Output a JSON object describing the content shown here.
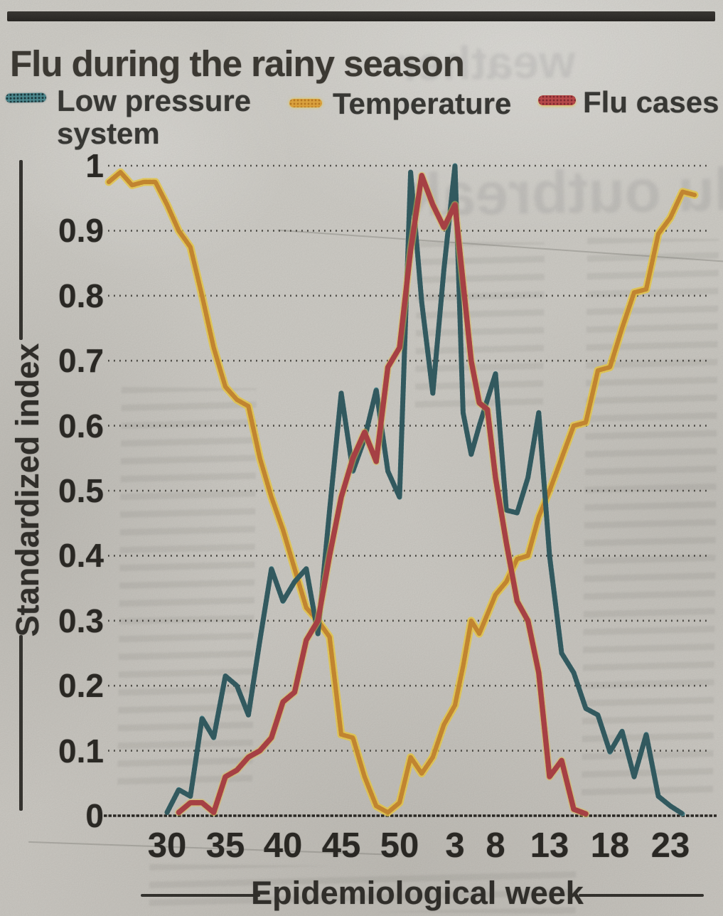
{
  "page": {
    "title": "Flu during the rainy season"
  },
  "legend": {
    "items": [
      {
        "id": "low-pressure",
        "lines": [
          "Low pressure",
          "system"
        ],
        "color": "#41808a"
      },
      {
        "id": "temperature",
        "lines": [
          "Temperature"
        ],
        "color": "#dd9c34"
      },
      {
        "id": "flu-cases",
        "lines": [
          "Flu cases"
        ],
        "color": "#bf4649"
      }
    ]
  },
  "ghost_text": {
    "headline_top": "weather",
    "headline_mid": "flu outbreak"
  },
  "chart_data": {
    "type": "line",
    "title": "Flu during the rainy season",
    "xlabel": "Epidemiological week",
    "ylabel": "Standardized index",
    "ylim": [
      0,
      1
    ],
    "grid": "dotted horizontal lines at every 0.1",
    "legend_position": "top",
    "x_axis_note": "weeks 30-52 of first year followed by weeks 1-26 of next year; continuous week index = week, or week+52 for the second year",
    "x_ticks": [
      {
        "label": "30",
        "week": 30
      },
      {
        "label": "35",
        "week": 35
      },
      {
        "label": "40",
        "week": 40
      },
      {
        "label": "45",
        "week": 45
      },
      {
        "label": "50",
        "week": 50
      },
      {
        "label": "3",
        "week": 55
      },
      {
        "label": "8",
        "week": 60
      },
      {
        "label": "13",
        "week": 65
      },
      {
        "label": "18",
        "week": 70
      },
      {
        "label": "23",
        "week": 75
      }
    ],
    "y_ticks": [
      {
        "label": "1",
        "value": 1.0
      },
      {
        "label": "0.9",
        "value": 0.9
      },
      {
        "label": "0.8",
        "value": 0.8
      },
      {
        "label": "0.7",
        "value": 0.7
      },
      {
        "label": "0.6",
        "value": 0.6
      },
      {
        "label": "0.5",
        "value": 0.5
      },
      {
        "label": "0.4",
        "value": 0.4
      },
      {
        "label": "0.3",
        "value": 0.3
      },
      {
        "label": "0.2",
        "value": 0.2
      },
      {
        "label": "0.1",
        "value": 0.1
      },
      {
        "label": "0",
        "value": 0.0
      }
    ],
    "series": [
      {
        "name": "Low pressure system",
        "color": "#41808a",
        "points": [
          [
            30,
            0.005
          ],
          [
            31,
            0.04
          ],
          [
            32,
            0.03
          ],
          [
            33,
            0.15
          ],
          [
            34,
            0.12
          ],
          [
            35,
            0.215
          ],
          [
            36,
            0.2
          ],
          [
            37,
            0.155
          ],
          [
            38,
            0.27
          ],
          [
            39,
            0.38
          ],
          [
            40,
            0.33
          ],
          [
            41,
            0.36
          ],
          [
            42,
            0.38
          ],
          [
            43,
            0.28
          ],
          [
            44,
            0.47
          ],
          [
            45,
            0.65
          ],
          [
            46,
            0.53
          ],
          [
            47,
            0.58
          ],
          [
            48,
            0.655
          ],
          [
            49,
            0.53
          ],
          [
            50,
            0.49
          ],
          [
            51,
            0.99
          ],
          [
            52,
            0.79
          ],
          [
            53,
            0.65
          ],
          [
            54,
            0.84
          ],
          [
            55,
            1.0
          ],
          [
            56,
            0.62
          ],
          [
            57,
            0.556
          ],
          [
            58,
            0.6
          ],
          [
            59,
            0.64
          ],
          [
            60,
            0.68
          ],
          [
            61,
            0.47
          ],
          [
            62,
            0.466
          ],
          [
            63,
            0.52
          ],
          [
            64,
            0.62
          ],
          [
            65,
            0.4
          ],
          [
            66,
            0.25
          ],
          [
            67,
            0.22
          ],
          [
            68,
            0.165
          ],
          [
            69,
            0.155
          ],
          [
            70,
            0.098
          ],
          [
            71,
            0.13
          ],
          [
            72,
            0.06
          ],
          [
            73,
            0.125
          ],
          [
            74,
            0.03
          ],
          [
            75,
            0.015
          ],
          [
            76,
            0.003
          ]
        ]
      },
      {
        "name": "Temperature",
        "color": "#dd9c34",
        "points": [
          [
            25,
            0.975
          ],
          [
            26,
            0.99
          ],
          [
            27,
            0.97
          ],
          [
            28,
            0.975
          ],
          [
            29,
            0.975
          ],
          [
            30,
            0.94
          ],
          [
            31,
            0.9
          ],
          [
            32,
            0.875
          ],
          [
            33,
            0.8
          ],
          [
            34,
            0.72
          ],
          [
            35,
            0.66
          ],
          [
            36,
            0.64
          ],
          [
            37,
            0.63
          ],
          [
            38,
            0.55
          ],
          [
            39,
            0.49
          ],
          [
            40,
            0.44
          ],
          [
            41,
            0.38
          ],
          [
            42,
            0.32
          ],
          [
            43,
            0.3
          ],
          [
            44,
            0.275
          ],
          [
            45,
            0.125
          ],
          [
            46,
            0.12
          ],
          [
            47,
            0.06
          ],
          [
            48,
            0.015
          ],
          [
            49,
            0.005
          ],
          [
            50,
            0.02
          ],
          [
            51,
            0.09
          ],
          [
            52,
            0.065
          ],
          [
            53,
            0.09
          ],
          [
            54,
            0.14
          ],
          [
            55,
            0.17
          ],
          [
            56,
            0.23
          ],
          [
            57,
            0.3
          ],
          [
            58,
            0.28
          ],
          [
            59,
            0.31
          ],
          [
            60,
            0.34
          ],
          [
            61,
            0.36
          ],
          [
            62,
            0.395
          ],
          [
            63,
            0.4
          ],
          [
            64,
            0.46
          ],
          [
            65,
            0.5
          ],
          [
            66,
            0.55
          ],
          [
            67,
            0.6
          ],
          [
            68,
            0.605
          ],
          [
            69,
            0.685
          ],
          [
            70,
            0.69
          ],
          [
            71,
            0.75
          ],
          [
            72,
            0.805
          ],
          [
            73,
            0.81
          ],
          [
            74,
            0.895
          ],
          [
            75,
            0.92
          ],
          [
            76,
            0.96
          ],
          [
            77,
            0.955
          ]
        ]
      },
      {
        "name": "Flu cases",
        "color": "#bf4649",
        "points": [
          [
            31,
            0.005
          ],
          [
            32,
            0.02
          ],
          [
            33,
            0.02
          ],
          [
            34,
            0.005
          ],
          [
            35,
            0.06
          ],
          [
            36,
            0.07
          ],
          [
            37,
            0.09
          ],
          [
            38,
            0.1
          ],
          [
            39,
            0.12
          ],
          [
            40,
            0.175
          ],
          [
            41,
            0.19
          ],
          [
            42,
            0.27
          ],
          [
            43,
            0.3
          ],
          [
            44,
            0.4
          ],
          [
            45,
            0.49
          ],
          [
            46,
            0.55
          ],
          [
            47,
            0.59
          ],
          [
            48,
            0.545
          ],
          [
            49,
            0.69
          ],
          [
            50,
            0.72
          ],
          [
            51,
            0.87
          ],
          [
            52,
            0.985
          ],
          [
            53,
            0.94
          ],
          [
            54,
            0.905
          ],
          [
            55,
            0.94
          ],
          [
            56,
            0.82
          ],
          [
            57,
            0.7
          ],
          [
            58,
            0.635
          ],
          [
            59,
            0.625
          ],
          [
            60,
            0.52
          ],
          [
            61,
            0.42
          ],
          [
            62,
            0.33
          ],
          [
            63,
            0.3
          ],
          [
            64,
            0.22
          ],
          [
            65,
            0.06
          ],
          [
            66,
            0.085
          ],
          [
            67,
            0.01
          ],
          [
            68,
            0.003
          ]
        ]
      }
    ]
  }
}
